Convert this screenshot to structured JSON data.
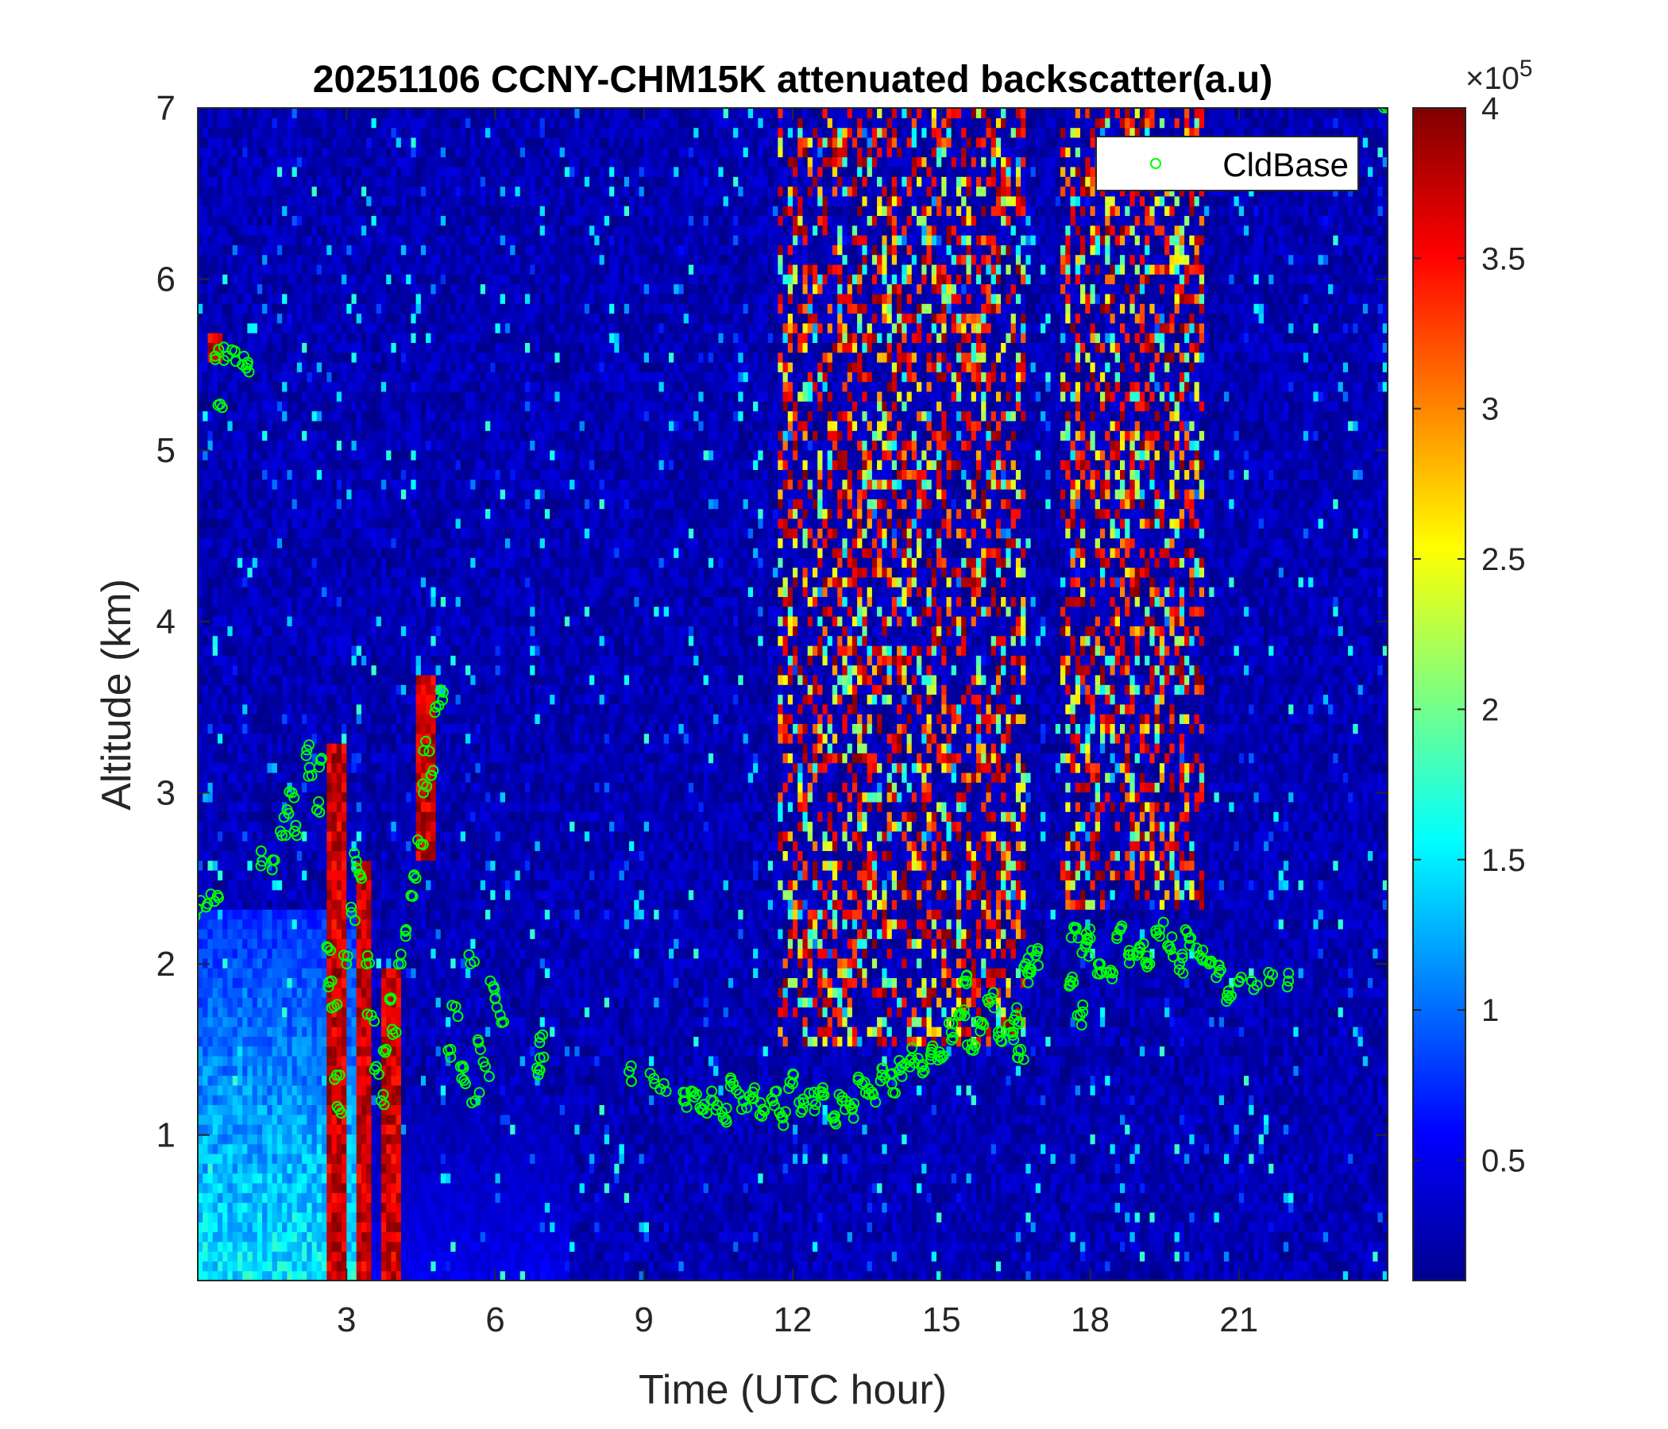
{
  "chart_data": {
    "type": "heatmap",
    "title": "20251106 CCNY-CHM15K attenuated backscatter(a.u)",
    "xlabel": "Time (UTC hour)",
    "ylabel": "Altitude (km)",
    "xlim": [
      0,
      24
    ],
    "ylim": [
      0.15,
      7
    ],
    "xticks": [
      3,
      6,
      9,
      12,
      15,
      18,
      21
    ],
    "yticks": [
      1,
      2,
      3,
      4,
      5,
      6,
      7
    ],
    "colormap": "jet",
    "colorbar": {
      "range": [
        0.1,
        4
      ],
      "ticks": [
        0.5,
        1,
        1.5,
        2,
        2.5,
        3,
        3.5,
        4
      ],
      "multiplier": "×10",
      "exponent": "5"
    },
    "legend": {
      "entries": [
        "CldBase"
      ],
      "placement": "top-right",
      "marker_color": "#00ff00"
    },
    "background_level": 0.25,
    "features": [
      {
        "type": "aerosol-layer",
        "t": [
          0,
          3.2
        ],
        "alt": [
          0.15,
          2.3
        ],
        "level": 1.6
      },
      {
        "type": "aerosol-layer",
        "t": [
          3.2,
          7.5
        ],
        "alt": [
          0.15,
          1.2
        ],
        "level": 0.55
      },
      {
        "type": "noise-band",
        "t": [
          11.7,
          16.7
        ],
        "alt": [
          1.5,
          7
        ],
        "level": 2.5
      },
      {
        "type": "noise-band",
        "t": [
          17.4,
          20.3
        ],
        "alt": [
          2.3,
          7
        ],
        "level": 2.2
      },
      {
        "type": "cloud-column",
        "t": [
          2.6,
          3.0
        ],
        "alt": [
          0.15,
          3.3
        ],
        "level": 4
      },
      {
        "type": "cloud-column",
        "t": [
          3.2,
          3.5
        ],
        "alt": [
          0.15,
          2.6
        ],
        "level": 4
      },
      {
        "type": "cloud-column",
        "t": [
          3.7,
          4.1
        ],
        "alt": [
          0.15,
          2.0
        ],
        "level": 4
      },
      {
        "type": "cloud-column",
        "t": [
          4.4,
          4.8
        ],
        "alt": [
          2.6,
          3.7
        ],
        "level": 4
      },
      {
        "type": "cloud-patch",
        "t": [
          0.2,
          0.5
        ],
        "alt": [
          5.5,
          5.7
        ],
        "level": 4
      }
    ],
    "cldbase": [
      [
        0.0,
        2.32
      ],
      [
        0.2,
        2.35
      ],
      [
        0.4,
        2.4
      ],
      [
        0.35,
        5.55
      ],
      [
        0.45,
        5.27
      ],
      [
        0.6,
        5.55
      ],
      [
        0.75,
        5.58
      ],
      [
        0.9,
        5.5
      ],
      [
        1.0,
        5.5
      ],
      [
        1.3,
        2.6
      ],
      [
        1.5,
        2.55
      ],
      [
        1.7,
        2.75
      ],
      [
        1.8,
        2.9
      ],
      [
        1.9,
        3.0
      ],
      [
        2.0,
        2.75
      ],
      [
        2.2,
        3.25
      ],
      [
        2.3,
        3.1
      ],
      [
        2.4,
        2.9
      ],
      [
        2.5,
        3.2
      ],
      [
        2.6,
        2.1
      ],
      [
        2.7,
        1.9
      ],
      [
        2.75,
        1.75
      ],
      [
        2.8,
        1.35
      ],
      [
        2.85,
        1.15
      ],
      [
        3.0,
        2.0
      ],
      [
        3.1,
        2.3
      ],
      [
        3.2,
        2.6
      ],
      [
        3.3,
        2.5
      ],
      [
        3.4,
        2.0
      ],
      [
        3.5,
        1.7
      ],
      [
        3.6,
        1.4
      ],
      [
        3.7,
        1.2
      ],
      [
        3.8,
        1.5
      ],
      [
        3.9,
        1.8
      ],
      [
        4.0,
        1.6
      ],
      [
        4.1,
        2.0
      ],
      [
        4.2,
        2.2
      ],
      [
        4.3,
        2.4
      ],
      [
        4.4,
        2.5
      ],
      [
        4.5,
        2.7
      ],
      [
        4.55,
        3.0
      ],
      [
        4.6,
        3.3
      ],
      [
        4.7,
        3.1
      ],
      [
        4.8,
        3.5
      ],
      [
        4.9,
        3.6
      ],
      [
        5.1,
        1.5
      ],
      [
        5.2,
        1.75
      ],
      [
        5.3,
        1.4
      ],
      [
        5.4,
        1.3
      ],
      [
        5.5,
        2.0
      ],
      [
        5.6,
        1.2
      ],
      [
        5.7,
        1.5
      ],
      [
        5.8,
        1.4
      ],
      [
        5.9,
        1.9
      ],
      [
        6.0,
        1.8
      ],
      [
        6.1,
        1.7
      ],
      [
        6.9,
        1.57
      ],
      [
        6.9,
        1.45
      ],
      [
        6.9,
        1.38
      ],
      [
        8.7,
        1.37
      ],
      [
        9.2,
        1.33
      ],
      [
        9.4,
        1.3
      ],
      [
        9.8,
        1.2
      ],
      [
        10.0,
        1.25
      ],
      [
        10.2,
        1.15
      ],
      [
        10.4,
        1.2
      ],
      [
        10.6,
        1.1
      ],
      [
        10.8,
        1.3
      ],
      [
        11.0,
        1.2
      ],
      [
        11.2,
        1.25
      ],
      [
        11.4,
        1.15
      ],
      [
        11.6,
        1.2
      ],
      [
        11.8,
        1.1
      ],
      [
        12.0,
        1.3
      ],
      [
        12.2,
        1.15
      ],
      [
        12.4,
        1.2
      ],
      [
        12.6,
        1.25
      ],
      [
        12.8,
        1.1
      ],
      [
        13.0,
        1.2
      ],
      [
        13.2,
        1.15
      ],
      [
        13.4,
        1.3
      ],
      [
        13.6,
        1.25
      ],
      [
        13.8,
        1.35
      ],
      [
        14.0,
        1.3
      ],
      [
        14.2,
        1.4
      ],
      [
        14.4,
        1.45
      ],
      [
        14.6,
        1.4
      ],
      [
        14.8,
        1.5
      ],
      [
        15.0,
        1.45
      ],
      [
        15.2,
        1.6
      ],
      [
        15.4,
        1.7
      ],
      [
        15.5,
        1.9
      ],
      [
        15.6,
        1.5
      ],
      [
        15.8,
        1.65
      ],
      [
        16.0,
        1.8
      ],
      [
        16.2,
        1.55
      ],
      [
        16.4,
        1.6
      ],
      [
        16.5,
        1.7
      ],
      [
        16.6,
        1.5
      ],
      [
        16.7,
        2.0
      ],
      [
        16.8,
        1.95
      ],
      [
        16.9,
        2.05
      ],
      [
        17.6,
        1.9
      ],
      [
        17.7,
        2.2
      ],
      [
        17.8,
        1.7
      ],
      [
        17.9,
        2.1
      ],
      [
        18.0,
        2.15
      ],
      [
        18.2,
        2.0
      ],
      [
        18.4,
        1.95
      ],
      [
        18.6,
        2.2
      ],
      [
        18.8,
        2.05
      ],
      [
        19.0,
        2.1
      ],
      [
        19.2,
        2.0
      ],
      [
        19.4,
        2.2
      ],
      [
        19.6,
        2.1
      ],
      [
        19.8,
        2.0
      ],
      [
        20.0,
        2.15
      ],
      [
        20.2,
        2.05
      ],
      [
        20.4,
        2.0
      ],
      [
        20.6,
        1.95
      ],
      [
        20.8,
        1.8
      ],
      [
        21.0,
        1.9
      ],
      [
        21.3,
        1.85
      ],
      [
        21.6,
        1.95
      ],
      [
        22.0,
        1.9
      ],
      [
        24.0,
        7.0
      ]
    ]
  }
}
